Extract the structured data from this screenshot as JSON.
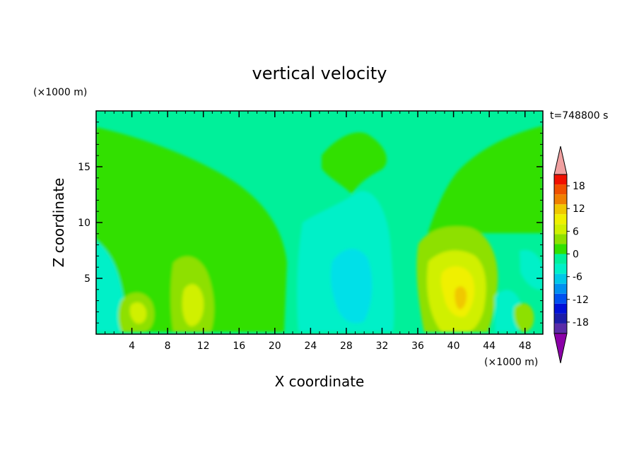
{
  "chart_data": {
    "type": "heatmap",
    "title": "vertical velocity",
    "xlabel": "X coordinate",
    "ylabel": "Z coordinate",
    "x_unit": "(×1000 m)",
    "y_unit": "(×1000 m)",
    "time_label": "t=748800 s",
    "xlim": [
      0,
      50
    ],
    "ylim": [
      0,
      20
    ],
    "x_ticks": [
      4,
      8,
      12,
      16,
      20,
      24,
      28,
      32,
      36,
      40,
      44,
      48
    ],
    "y_ticks": [
      5,
      10,
      15
    ],
    "colorbar": {
      "levels": [
        -21,
        -18,
        -15,
        -12,
        -9,
        -6,
        -3,
        0,
        3,
        6,
        9,
        12,
        15,
        18,
        21
      ],
      "tick_labels": [
        18,
        12,
        6,
        0,
        -6,
        -12,
        -18
      ],
      "colors": [
        "#8b00a8",
        "#5a2ba8",
        "#1c1ca8",
        "#0010d8",
        "#0050f0",
        "#0090f0",
        "#00c8e8",
        "#00f0c8",
        "#00f09a",
        "#32e000",
        "#8ee000",
        "#d0f000",
        "#f0f000",
        "#f0c800",
        "#f08000",
        "#f05000",
        "#f01000",
        "#f0a0a0"
      ],
      "extend": "both"
    },
    "features": [
      {
        "kind": "background",
        "x_range": [
          0,
          50
        ],
        "z_range": [
          0,
          20
        ],
        "w": 0.5
      },
      {
        "kind": "upper-left downdraft",
        "x_range": [
          0,
          22
        ],
        "z_range": [
          6,
          18.5
        ],
        "w": 2
      },
      {
        "kind": "mid updraft column",
        "x_range": [
          9,
          13
        ],
        "z_range": [
          0.5,
          7
        ],
        "w": 6
      },
      {
        "kind": "left updraft",
        "x_range": [
          3,
          6
        ],
        "z_range": [
          0.5,
          4
        ],
        "w": 7
      },
      {
        "kind": "upper center cell",
        "x_range": [
          23,
          31
        ],
        "z_range": [
          12,
          18
        ],
        "w": 2
      },
      {
        "kind": "center downdraft column",
        "x_range": [
          23,
          34
        ],
        "z_range": [
          0.5,
          13
        ],
        "w": -5
      },
      {
        "kind": "right updraft core",
        "x_range": [
          36,
          44
        ],
        "z_range": [
          0.5,
          9.5
        ],
        "w": 11
      },
      {
        "kind": "upper-right downdraft",
        "x_range": [
          38,
          50
        ],
        "z_range": [
          10,
          18.5
        ],
        "w": 2
      }
    ]
  }
}
